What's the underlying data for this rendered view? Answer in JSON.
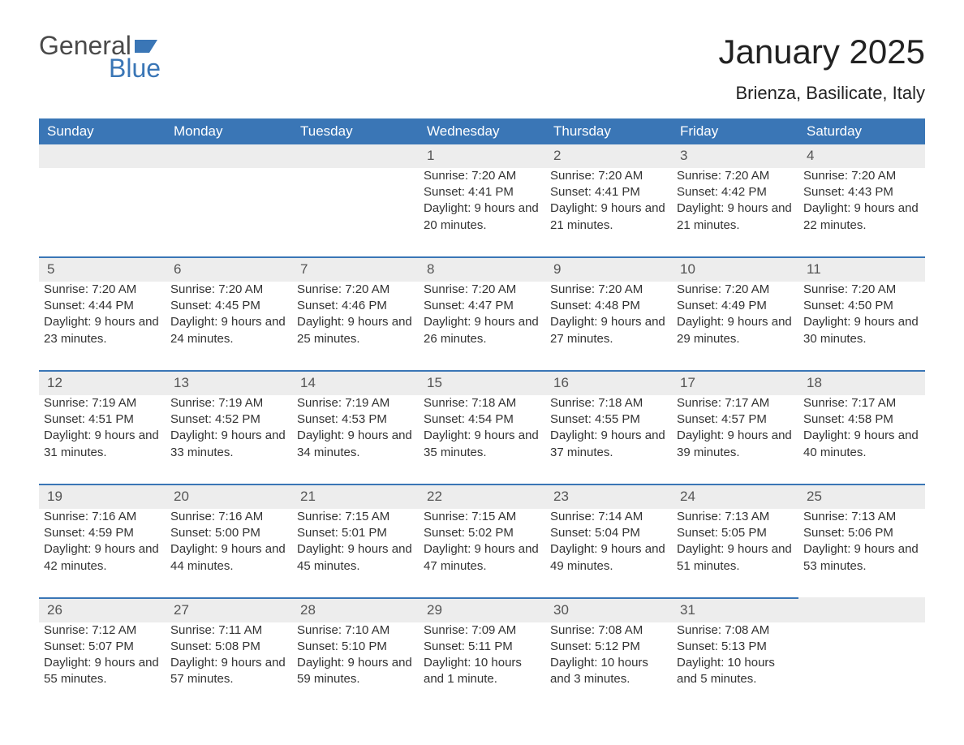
{
  "logo": {
    "word1": "General",
    "word2": "Blue",
    "flag_color": "#3a76b6"
  },
  "title": "January 2025",
  "location": "Brienza, Basilicate, Italy",
  "colors": {
    "header_bg": "#3a76b6",
    "header_text": "#ffffff",
    "daynum_bg": "#ededed",
    "daynum_border": "#3a76b6",
    "body_text": "#333333",
    "page_bg": "#ffffff"
  },
  "weekdays": [
    "Sunday",
    "Monday",
    "Tuesday",
    "Wednesday",
    "Thursday",
    "Friday",
    "Saturday"
  ],
  "weeks": [
    [
      null,
      null,
      null,
      {
        "n": "1",
        "sunrise": "7:20 AM",
        "sunset": "4:41 PM",
        "daylight": "9 hours and 20 minutes."
      },
      {
        "n": "2",
        "sunrise": "7:20 AM",
        "sunset": "4:41 PM",
        "daylight": "9 hours and 21 minutes."
      },
      {
        "n": "3",
        "sunrise": "7:20 AM",
        "sunset": "4:42 PM",
        "daylight": "9 hours and 21 minutes."
      },
      {
        "n": "4",
        "sunrise": "7:20 AM",
        "sunset": "4:43 PM",
        "daylight": "9 hours and 22 minutes."
      }
    ],
    [
      {
        "n": "5",
        "sunrise": "7:20 AM",
        "sunset": "4:44 PM",
        "daylight": "9 hours and 23 minutes."
      },
      {
        "n": "6",
        "sunrise": "7:20 AM",
        "sunset": "4:45 PM",
        "daylight": "9 hours and 24 minutes."
      },
      {
        "n": "7",
        "sunrise": "7:20 AM",
        "sunset": "4:46 PM",
        "daylight": "9 hours and 25 minutes."
      },
      {
        "n": "8",
        "sunrise": "7:20 AM",
        "sunset": "4:47 PM",
        "daylight": "9 hours and 26 minutes."
      },
      {
        "n": "9",
        "sunrise": "7:20 AM",
        "sunset": "4:48 PM",
        "daylight": "9 hours and 27 minutes."
      },
      {
        "n": "10",
        "sunrise": "7:20 AM",
        "sunset": "4:49 PM",
        "daylight": "9 hours and 29 minutes."
      },
      {
        "n": "11",
        "sunrise": "7:20 AM",
        "sunset": "4:50 PM",
        "daylight": "9 hours and 30 minutes."
      }
    ],
    [
      {
        "n": "12",
        "sunrise": "7:19 AM",
        "sunset": "4:51 PM",
        "daylight": "9 hours and 31 minutes."
      },
      {
        "n": "13",
        "sunrise": "7:19 AM",
        "sunset": "4:52 PM",
        "daylight": "9 hours and 33 minutes."
      },
      {
        "n": "14",
        "sunrise": "7:19 AM",
        "sunset": "4:53 PM",
        "daylight": "9 hours and 34 minutes."
      },
      {
        "n": "15",
        "sunrise": "7:18 AM",
        "sunset": "4:54 PM",
        "daylight": "9 hours and 35 minutes."
      },
      {
        "n": "16",
        "sunrise": "7:18 AM",
        "sunset": "4:55 PM",
        "daylight": "9 hours and 37 minutes."
      },
      {
        "n": "17",
        "sunrise": "7:17 AM",
        "sunset": "4:57 PM",
        "daylight": "9 hours and 39 minutes."
      },
      {
        "n": "18",
        "sunrise": "7:17 AM",
        "sunset": "4:58 PM",
        "daylight": "9 hours and 40 minutes."
      }
    ],
    [
      {
        "n": "19",
        "sunrise": "7:16 AM",
        "sunset": "4:59 PM",
        "daylight": "9 hours and 42 minutes."
      },
      {
        "n": "20",
        "sunrise": "7:16 AM",
        "sunset": "5:00 PM",
        "daylight": "9 hours and 44 minutes."
      },
      {
        "n": "21",
        "sunrise": "7:15 AM",
        "sunset": "5:01 PM",
        "daylight": "9 hours and 45 minutes."
      },
      {
        "n": "22",
        "sunrise": "7:15 AM",
        "sunset": "5:02 PM",
        "daylight": "9 hours and 47 minutes."
      },
      {
        "n": "23",
        "sunrise": "7:14 AM",
        "sunset": "5:04 PM",
        "daylight": "9 hours and 49 minutes."
      },
      {
        "n": "24",
        "sunrise": "7:13 AM",
        "sunset": "5:05 PM",
        "daylight": "9 hours and 51 minutes."
      },
      {
        "n": "25",
        "sunrise": "7:13 AM",
        "sunset": "5:06 PM",
        "daylight": "9 hours and 53 minutes."
      }
    ],
    [
      {
        "n": "26",
        "sunrise": "7:12 AM",
        "sunset": "5:07 PM",
        "daylight": "9 hours and 55 minutes."
      },
      {
        "n": "27",
        "sunrise": "7:11 AM",
        "sunset": "5:08 PM",
        "daylight": "9 hours and 57 minutes."
      },
      {
        "n": "28",
        "sunrise": "7:10 AM",
        "sunset": "5:10 PM",
        "daylight": "9 hours and 59 minutes."
      },
      {
        "n": "29",
        "sunrise": "7:09 AM",
        "sunset": "5:11 PM",
        "daylight": "10 hours and 1 minute."
      },
      {
        "n": "30",
        "sunrise": "7:08 AM",
        "sunset": "5:12 PM",
        "daylight": "10 hours and 3 minutes."
      },
      {
        "n": "31",
        "sunrise": "7:08 AM",
        "sunset": "5:13 PM",
        "daylight": "10 hours and 5 minutes."
      },
      null
    ]
  ],
  "labels": {
    "sunrise": "Sunrise: ",
    "sunset": "Sunset: ",
    "daylight": "Daylight: "
  }
}
